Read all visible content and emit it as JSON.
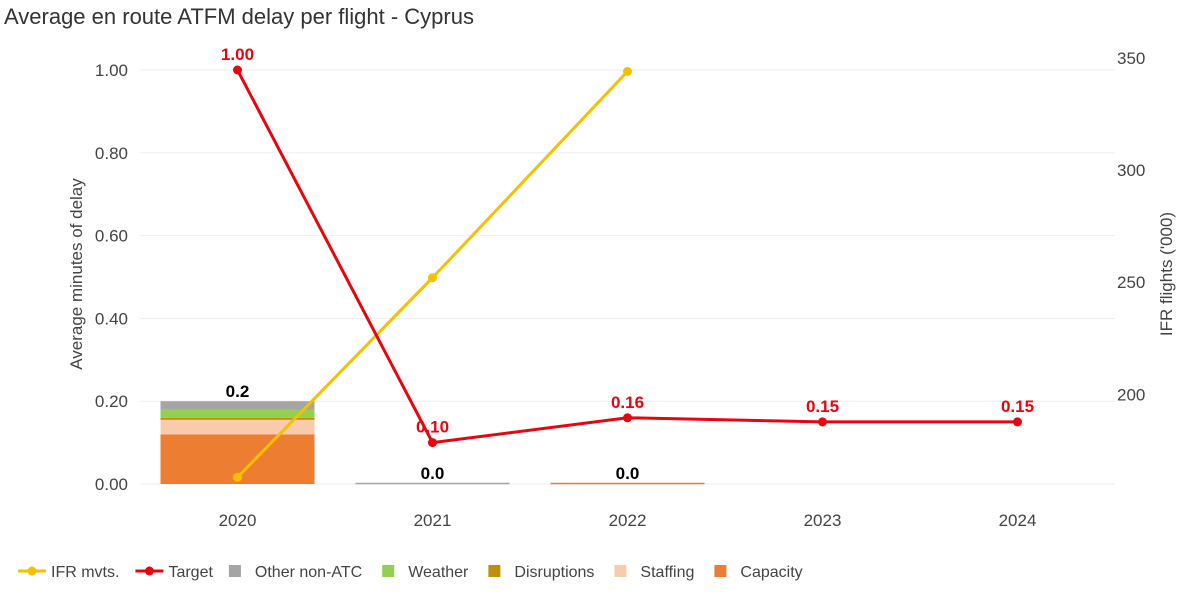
{
  "chart_data": {
    "type": "bar",
    "title": "Average en route ATFM delay per flight - Cyprus",
    "categories": [
      "2020",
      "2021",
      "2022",
      "2023",
      "2024"
    ],
    "y_left": {
      "label": "Average minutes of delay",
      "range": [
        0,
        1.0
      ],
      "ticks": [
        "0.00",
        "0.20",
        "0.40",
        "0.60",
        "0.80",
        "1.00"
      ]
    },
    "y_right": {
      "label": "IFR flights ('000)",
      "range": [
        160,
        350
      ],
      "ticks": [
        "200",
        "250",
        "300",
        "350"
      ]
    },
    "stacked_series": [
      {
        "name": "Capacity",
        "color": "#ed7d31",
        "values": [
          0.12,
          0,
          0.003,
          null,
          null
        ]
      },
      {
        "name": "Staffing",
        "color": "#f8cbad",
        "values": [
          0.035,
          0,
          0,
          null,
          null
        ]
      },
      {
        "name": "Disruptions",
        "color": "#bf9000",
        "values": [
          0.005,
          0,
          0,
          null,
          null
        ]
      },
      {
        "name": "Weather",
        "color": "#92d050",
        "values": [
          0.02,
          0,
          0,
          null,
          null
        ]
      },
      {
        "name": "Other non-ATC",
        "color": "#a5a5a5",
        "values": [
          0.02,
          0.003,
          0,
          null,
          null
        ]
      }
    ],
    "bar_totals": [
      "0.2",
      "0.0",
      "0.0",
      null,
      null
    ],
    "target": {
      "name": "Target",
      "color": "#e8050e",
      "values": [
        1.0,
        0.1,
        0.16,
        0.15,
        0.15
      ],
      "labels": [
        "1.00",
        "0.10",
        "0.16",
        "0.15",
        "0.15"
      ]
    },
    "ifr": {
      "name": "IFR mvts.",
      "color": "#f5c000",
      "values": [
        163,
        252,
        344,
        null,
        null
      ]
    },
    "legend": {
      "position": "bottom-left",
      "items": [
        {
          "name": "IFR mvts.",
          "kind": "line",
          "color": "#f5c000"
        },
        {
          "name": "Target",
          "kind": "line",
          "color": "#e8050e"
        },
        {
          "name": "Other non-ATC",
          "kind": "box",
          "color": "#a5a5a5"
        },
        {
          "name": "Weather",
          "kind": "box",
          "color": "#92d050"
        },
        {
          "name": "Disruptions",
          "kind": "box",
          "color": "#bf9000"
        },
        {
          "name": "Staffing",
          "kind": "box",
          "color": "#f8cbad"
        },
        {
          "name": "Capacity",
          "kind": "box",
          "color": "#ed7d31"
        }
      ]
    },
    "grid": true
  }
}
